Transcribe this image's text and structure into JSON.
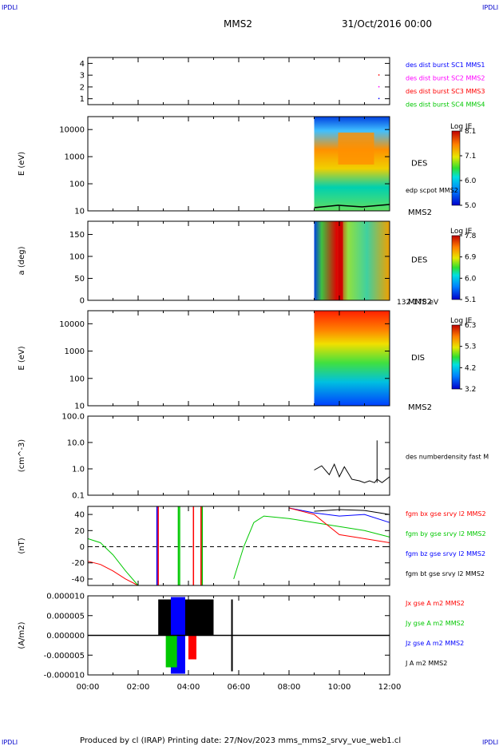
{
  "header": {
    "corner_left": "IPDLI",
    "corner_right": "IPDLI",
    "spacecraft": "MMS2",
    "datetime": "31/Oct/2016 00:00"
  },
  "footer": {
    "text": "Produced by cl (IRAP)   Printing date: 27/Nov/2023   mms_mms2_srvy_vue_web1.cl",
    "corner_left": "IPDLI",
    "corner_right": "IPDLI"
  },
  "colors": {
    "blue": "#0000ff",
    "magenta": "#ff00ff",
    "red": "#ff0000",
    "green": "#00c800",
    "black": "#000000"
  },
  "time_axis": {
    "ticks": [
      "00:00",
      "02:00",
      "04:00",
      "06:00",
      "08:00",
      "10:00",
      "12:00"
    ],
    "range_hours": [
      0,
      12
    ]
  },
  "chart_data": [
    {
      "id": "panel1",
      "type": "scatter",
      "ylabel": "",
      "yticks": [
        "4",
        "3",
        "2",
        "1"
      ],
      "ylim": [
        0.5,
        4.5
      ],
      "legend": [
        {
          "label": "des dist burst SC1 MMS1",
          "color": "#0000ff"
        },
        {
          "label": "des dist burst SC2 MMS2",
          "color": "#ff00ff"
        },
        {
          "label": "des dist burst SC3 MMS3",
          "color": "#ff0000"
        },
        {
          "label": "des dist burst SC4 MMS4",
          "color": "#00c800"
        }
      ],
      "points": [
        {
          "x": 11.55,
          "y": 3,
          "color": "#ff0000"
        },
        {
          "x": 11.55,
          "y": 2,
          "color": "#ff00ff"
        },
        {
          "x": 11.55,
          "y": 1,
          "color": "#0000ff"
        }
      ]
    },
    {
      "id": "panel2",
      "type": "heatmap",
      "ylabel": "E (eV)",
      "yticks": [
        "10000",
        "1000",
        "100",
        "10"
      ],
      "ylim": [
        10,
        30000
      ],
      "yscale": "log",
      "label": "DES",
      "sublabel": "MMS2",
      "overlay_label": "edp scpot MMS2",
      "colorbar": {
        "title": "Log JE",
        "ticks": [
          "8.1",
          "7.1",
          "6.0",
          "5.0"
        ]
      },
      "data_start_hours": 9.0
    },
    {
      "id": "panel3",
      "type": "heatmap",
      "ylabel": "a (deg)",
      "yticks": [
        "150",
        "100",
        "50",
        "0"
      ],
      "ylim": [
        0,
        180
      ],
      "label": "DES",
      "sublabel": "MMS2",
      "energy_range": "132-178 eV",
      "colorbar": {
        "title": "Log JE",
        "ticks": [
          "7.8",
          "6.9",
          "6.0",
          "5.1"
        ]
      },
      "data_start_hours": 9.0
    },
    {
      "id": "panel4",
      "type": "heatmap",
      "ylabel": "E (eV)",
      "yticks": [
        "10000",
        "1000",
        "100",
        "10"
      ],
      "ylim": [
        10,
        30000
      ],
      "yscale": "log",
      "label": "DIS",
      "sublabel": "MMS2",
      "colorbar": {
        "title": "Log JE",
        "ticks": [
          "6.3",
          "5.3",
          "4.2",
          "3.2"
        ]
      },
      "data_start_hours": 9.0
    },
    {
      "id": "panel5",
      "type": "line",
      "ylabel": "(cm^-3)",
      "yticks": [
        "100.0",
        "10.0",
        "1.0",
        "0.1"
      ],
      "ylim": [
        0.1,
        100
      ],
      "yscale": "log",
      "legend": [
        {
          "label": "des numberdensity fast M",
          "color": "#000000"
        }
      ],
      "series": [
        {
          "color": "#000000",
          "x": [
            9.0,
            9.3,
            9.6,
            9.8,
            10.0,
            10.2,
            10.5,
            10.8,
            11.0,
            11.2,
            11.4,
            11.5,
            11.7,
            12.0
          ],
          "y": [
            0.9,
            1.3,
            0.6,
            1.5,
            0.5,
            1.2,
            0.4,
            0.35,
            0.3,
            0.35,
            0.3,
            0.4,
            0.3,
            0.5
          ]
        }
      ]
    },
    {
      "id": "panel6",
      "type": "line",
      "ylabel": "(nT)",
      "yticks": [
        "40",
        "20",
        "0",
        "-20",
        "-40"
      ],
      "ylim": [
        -48,
        50
      ],
      "legend": [
        {
          "label": "fgm bx gse srvy l2 MMS2",
          "color": "#ff0000"
        },
        {
          "label": "fgm by gse srvy l2 MMS2",
          "color": "#00c800"
        },
        {
          "label": "fgm bz gse srvy l2 MMS2",
          "color": "#0000ff"
        },
        {
          "label": "fgm bt gse srvy l2 MMS2",
          "color": "#000000"
        }
      ],
      "series": [
        {
          "color": "#ff0000",
          "x": [
            0,
            0.5,
            1.0,
            1.5,
            2.0
          ],
          "y": [
            -18,
            -22,
            -30,
            -40,
            -48
          ]
        },
        {
          "color": "#00c800",
          "x": [
            0,
            0.5,
            1.0,
            1.5,
            2.0
          ],
          "y": [
            10,
            5,
            -10,
            -30,
            -48
          ]
        },
        {
          "color": "#00c800",
          "x": [
            5.8,
            6.2,
            6.6,
            7.0,
            8.0,
            9.0,
            10.0,
            11.0,
            12.0
          ],
          "y": [
            -40,
            0,
            30,
            38,
            35,
            30,
            25,
            20,
            12
          ]
        },
        {
          "color": "#0000ff",
          "x": [
            8.0,
            9.0,
            10.0,
            11.0,
            12.0
          ],
          "y": [
            48,
            42,
            38,
            40,
            30
          ]
        },
        {
          "color": "#000000",
          "x": [
            9.0,
            10.0,
            11.0,
            12.0
          ],
          "y": [
            44,
            46,
            45,
            40
          ]
        },
        {
          "color": "#ff0000",
          "x": [
            8.0,
            9.0,
            10.0,
            11.0,
            12.0
          ],
          "y": [
            48,
            40,
            15,
            10,
            5
          ]
        }
      ]
    },
    {
      "id": "panel7",
      "type": "line",
      "ylabel": "(A/m2)",
      "yticks": [
        "0.000010",
        "0.000005",
        "0.000000",
        "-0.000005",
        "-0.000010"
      ],
      "ylim": [
        -1e-05,
        1e-05
      ],
      "legend": [
        {
          "label": "Jx gse A m2 MMS2",
          "color": "#ff0000"
        },
        {
          "label": "Jy gse A m2 MMS2",
          "color": "#00c800"
        },
        {
          "label": "Jz gse A m2 MMS2",
          "color": "#0000ff"
        },
        {
          "label": "J A m2 MMS2",
          "color": "#000000"
        }
      ],
      "bursts": [
        {
          "x0": 2.8,
          "x1": 5.0
        },
        {
          "x0": 5.7,
          "x1": 5.8
        }
      ]
    }
  ]
}
